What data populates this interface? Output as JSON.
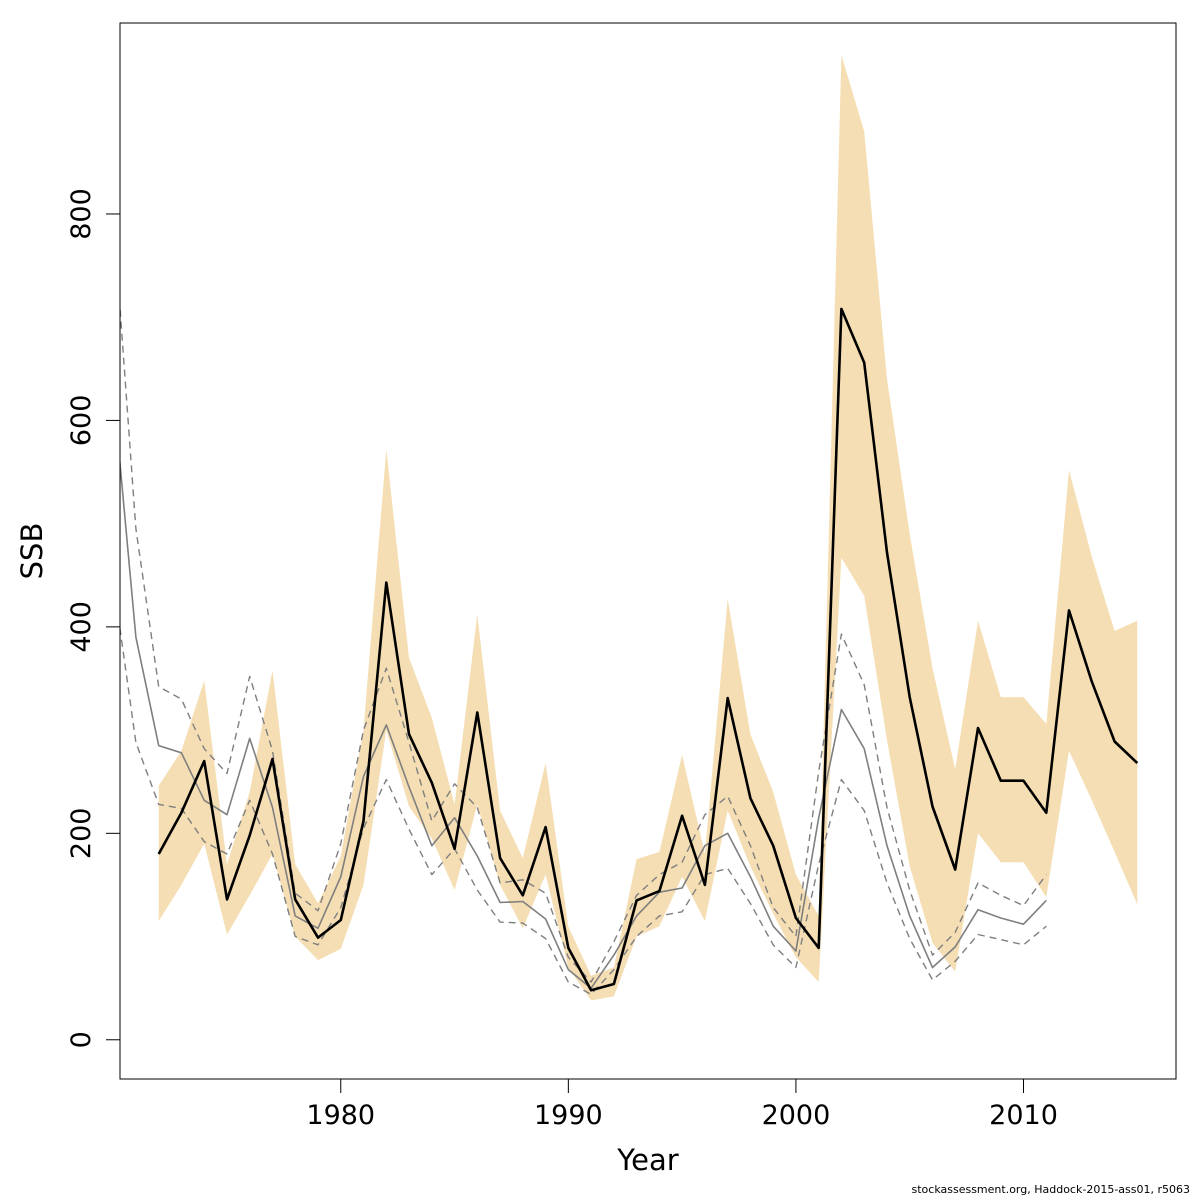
{
  "chart_data": {
    "type": "line",
    "xlabel": "Year",
    "ylabel": "SSB",
    "xlim": [
      1970.3,
      2016.7
    ],
    "ylim": [
      -38,
      985
    ],
    "x_ticks": [
      1980,
      1990,
      2000,
      2010
    ],
    "y_ticks": [
      0,
      200,
      400,
      600,
      800
    ],
    "grid": false,
    "legend": "none",
    "colors": {
      "band": "#f5deb3",
      "estimate": "#000000",
      "retro": "#7f7f7f",
      "retro_ci": "#7f7f7f"
    },
    "band": {
      "x": [
        1972,
        1973,
        1974,
        1975,
        1976,
        1977,
        1978,
        1979,
        1980,
        1981,
        1982,
        1983,
        1984,
        1985,
        1986,
        1987,
        1988,
        1989,
        1990,
        1991,
        1992,
        1993,
        1994,
        1995,
        1996,
        1997,
        1998,
        1999,
        2000,
        2001,
        2002,
        2003,
        2004,
        2005,
        2006,
        2007,
        2008,
        2009,
        2010,
        2011,
        2012,
        2013,
        2014,
        2015
      ],
      "upper": [
        246,
        280,
        348,
        170,
        240,
        358,
        170,
        132,
        178,
        300,
        572,
        370,
        312,
        228,
        412,
        222,
        176,
        268,
        110,
        62,
        70,
        175,
        182,
        276,
        180,
        427,
        296,
        240,
        160,
        120,
        954,
        880,
        640,
        490,
        360,
        262,
        406,
        332,
        332,
        306,
        552,
        468,
        396,
        406
      ],
      "lower": [
        115,
        150,
        190,
        102,
        140,
        180,
        100,
        77,
        88,
        150,
        300,
        226,
        195,
        145,
        228,
        150,
        108,
        160,
        70,
        38,
        42,
        100,
        110,
        158,
        115,
        222,
        168,
        122,
        80,
        56,
        467,
        430,
        290,
        168,
        94,
        66,
        200,
        172,
        172,
        138,
        280,
        232,
        182,
        131
      ]
    },
    "series": [
      {
        "role": "estimate",
        "x": [
          1972,
          1973,
          1974,
          1975,
          1976,
          1977,
          1978,
          1979,
          1980,
          1981,
          1982,
          1983,
          1984,
          1985,
          1986,
          1987,
          1988,
          1989,
          1990,
          1991,
          1992,
          1993,
          1994,
          1995,
          1996,
          1997,
          1998,
          1999,
          2000,
          2001,
          2002,
          2003,
          2004,
          2005,
          2006,
          2007,
          2008,
          2009,
          2010,
          2011,
          2012,
          2013,
          2014,
          2015
        ],
        "values": [
          180,
          220,
          270,
          136,
          198,
          272,
          136,
          99,
          116,
          212,
          443,
          296,
          249,
          185,
          317,
          176,
          140,
          206,
          89,
          48,
          54,
          135,
          144,
          217,
          150,
          331,
          234,
          188,
          118,
          89,
          708,
          656,
          472,
          332,
          226,
          165,
          302,
          251,
          251,
          220,
          416,
          347,
          289,
          268
        ]
      },
      {
        "role": "retrospective",
        "x": [
          1970,
          1971,
          1972,
          1973,
          1974,
          1975,
          1976,
          1977,
          1978,
          1979,
          1980,
          1981,
          1982,
          1983,
          1984,
          1985,
          1986,
          1987,
          1988,
          1989,
          1990,
          1991,
          1992,
          1993,
          1994,
          1995,
          1996,
          1997,
          1998,
          1999,
          2000,
          2001,
          2002,
          2003,
          2004,
          2005,
          2006,
          2007,
          2008,
          2009,
          2010,
          2011
        ],
        "values": [
          630,
          390,
          285,
          278,
          232,
          218,
          292,
          225,
          120,
          108,
          158,
          255,
          305,
          245,
          188,
          215,
          178,
          133,
          134,
          117,
          68,
          50,
          82,
          120,
          143,
          147,
          188,
          200,
          158,
          110,
          86,
          215,
          320,
          282,
          188,
          120,
          70,
          90,
          126,
          118,
          112,
          135
        ]
      },
      {
        "role": "retrospective-upper",
        "x": [
          1970,
          1971,
          1972,
          1973,
          1974,
          1975,
          1976,
          1977,
          1978,
          1979,
          1980,
          1981,
          1982,
          1983,
          1984,
          1985,
          1986,
          1987,
          1988,
          1989,
          1990,
          1991,
          1992,
          1993,
          1994,
          1995,
          1996,
          1997,
          1998,
          1999,
          2000,
          2001,
          2002,
          2003,
          2004,
          2005,
          2006,
          2007,
          2008,
          2009,
          2010,
          2011
        ],
        "values": [
          800,
          495,
          342,
          330,
          282,
          258,
          352,
          280,
          142,
          125,
          190,
          300,
          360,
          288,
          212,
          248,
          225,
          152,
          155,
          142,
          80,
          56,
          95,
          140,
          160,
          172,
          218,
          236,
          188,
          128,
          100,
          260,
          393,
          344,
          225,
          145,
          82,
          104,
          152,
          140,
          130,
          160
        ]
      },
      {
        "role": "retrospective-lower",
        "x": [
          1970,
          1971,
          1972,
          1973,
          1974,
          1975,
          1976,
          1977,
          1978,
          1979,
          1980,
          1981,
          1982,
          1983,
          1984,
          1985,
          1986,
          1987,
          1988,
          1989,
          1990,
          1991,
          1992,
          1993,
          1994,
          1995,
          1996,
          1997,
          1998,
          1999,
          2000,
          2001,
          2002,
          2003,
          2004,
          2005,
          2006,
          2007,
          2008,
          2009,
          2010,
          2011
        ],
        "values": [
          445,
          288,
          228,
          224,
          192,
          180,
          232,
          180,
          100,
          92,
          128,
          205,
          252,
          204,
          160,
          185,
          145,
          114,
          113,
          98,
          56,
          44,
          68,
          100,
          120,
          124,
          160,
          166,
          132,
          92,
          70,
          170,
          252,
          222,
          152,
          98,
          58,
          76,
          102,
          97,
          92,
          110
        ]
      }
    ]
  },
  "credit": "stockassessment.org, Haddock-2015-ass01, r5063"
}
